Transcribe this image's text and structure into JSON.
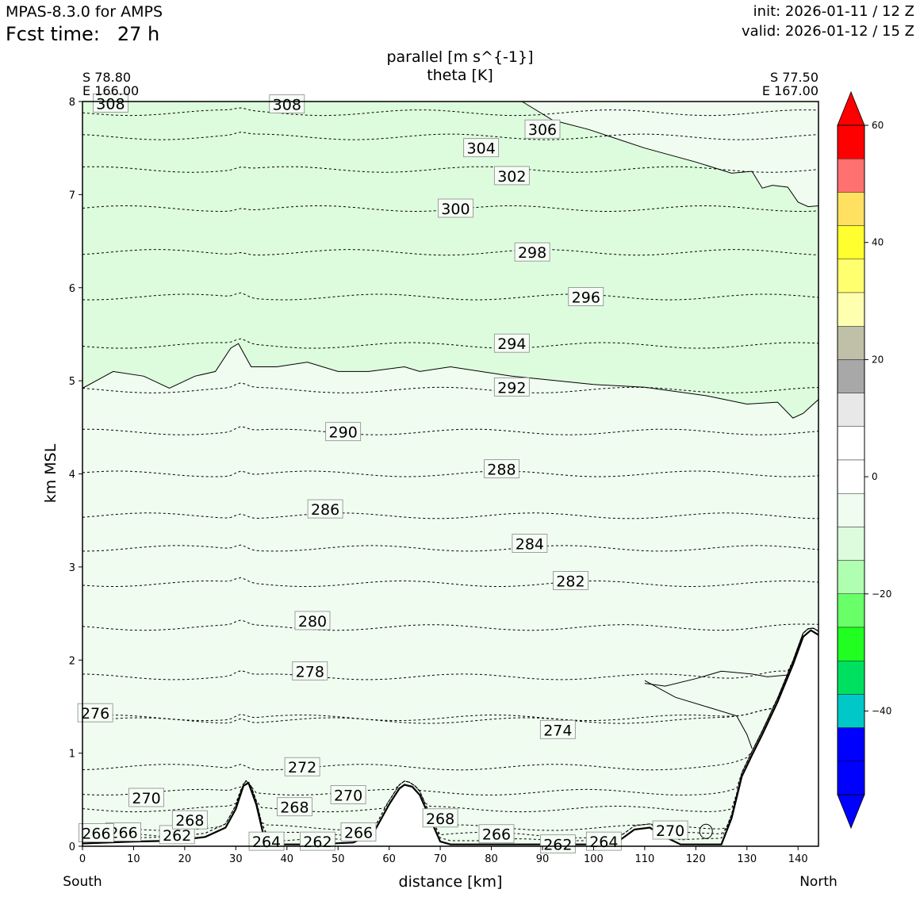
{
  "header": {
    "model": "MPAS-8.3.0 for AMPS",
    "fcst_label": "Fcst time:",
    "fcst_value": "27 h",
    "init": "init: 2026-01-11 / 12 Z",
    "valid": "valid: 2026-01-12 / 15 Z"
  },
  "endpoints": {
    "left_lat": "S 78.80",
    "left_lon": "E 166.00",
    "right_lat": "S 77.50",
    "right_lon": "E 167.00",
    "left_dir": "South",
    "right_dir": "North"
  },
  "chart_data": {
    "type": "contour-cross-section",
    "title": "parallel [m s^{-1}]",
    "subtitle": "theta [K]",
    "xlabel": "distance [km]",
    "ylabel": "km MSL",
    "xlim": [
      0,
      144
    ],
    "ylim": [
      0,
      8
    ],
    "xticks": [
      0,
      10,
      20,
      30,
      40,
      50,
      60,
      70,
      80,
      90,
      100,
      110,
      120,
      130,
      140
    ],
    "yticks": [
      0,
      1,
      2,
      3,
      4,
      5,
      6,
      7,
      8
    ],
    "filled_regions": [
      {
        "name": "0 to -5 m/s",
        "color": "#f0fcf0"
      },
      {
        "name": "-5 to -10 m/s",
        "color": "#ddfcdd"
      }
    ],
    "contour_minus5_boundary": [
      [
        0,
        4.92
      ],
      [
        6,
        5.1
      ],
      [
        12,
        5.05
      ],
      [
        17,
        4.92
      ],
      [
        22,
        5.05
      ],
      [
        26,
        5.1
      ],
      [
        29,
        5.35
      ],
      [
        30.5,
        5.4
      ],
      [
        33,
        5.15
      ],
      [
        38,
        5.15
      ],
      [
        44,
        5.2
      ],
      [
        50,
        5.1
      ],
      [
        56,
        5.1
      ],
      [
        63,
        5.15
      ],
      [
        66,
        5.1
      ],
      [
        72,
        5.15
      ],
      [
        84,
        5.05
      ],
      [
        100,
        4.96
      ],
      [
        110,
        4.93
      ],
      [
        122,
        4.84
      ],
      [
        130,
        4.75
      ],
      [
        136,
        4.77
      ],
      [
        139,
        4.6
      ],
      [
        141,
        4.65
      ],
      [
        144,
        4.8
      ]
    ],
    "contour_upper_zero": [
      [
        86,
        8
      ],
      [
        92,
        7.8
      ],
      [
        99,
        7.7
      ],
      [
        110,
        7.5
      ],
      [
        120,
        7.35
      ],
      [
        127,
        7.23
      ],
      [
        131,
        7.25
      ],
      [
        133,
        7.07
      ],
      [
        135,
        7.1
      ],
      [
        138,
        7.08
      ],
      [
        140,
        6.92
      ],
      [
        142,
        6.87
      ],
      [
        144,
        6.88
      ]
    ],
    "theta_contours": [
      {
        "level": 262,
        "y": 0.05,
        "label_x": 18.5,
        "label_y": 0.12
      },
      {
        "level": 264,
        "y": 0.12,
        "label_x": 36,
        "label_y": 0.05
      },
      {
        "level": 266,
        "y": 0.2,
        "label_x": 8,
        "label_y": 0.15
      },
      {
        "level": 268,
        "y": 0.4,
        "label_x": 21,
        "label_y": 0.28
      },
      {
        "level": 270,
        "y": 0.58,
        "label_x": 12.5,
        "label_y": 0.52
      },
      {
        "level": 272,
        "y": 0.85,
        "label_x": 43,
        "label_y": 0.85
      },
      {
        "level": 274,
        "y": 1.35,
        "label_x": 93,
        "label_y": 1.25
      },
      {
        "level": 276,
        "y": 1.38,
        "label_x": 2.5,
        "label_y": 1.43
      },
      {
        "level": 278,
        "y": 1.82,
        "label_x": 44.5,
        "label_y": 1.88
      },
      {
        "level": 280,
        "y": 2.35,
        "label_x": 45,
        "label_y": 2.42
      },
      {
        "level": 282,
        "y": 2.82,
        "label_x": 95.5,
        "label_y": 2.85
      },
      {
        "level": 284,
        "y": 3.2,
        "label_x": 87.5,
        "label_y": 3.25
      },
      {
        "level": 286,
        "y": 3.55,
        "label_x": 47.5,
        "label_y": 3.62
      },
      {
        "level": 288,
        "y": 4.0,
        "label_x": 82,
        "label_y": 4.05
      },
      {
        "level": 290,
        "y": 4.45,
        "label_x": 51,
        "label_y": 4.45
      },
      {
        "level": 292,
        "y": 4.9,
        "label_x": 84,
        "label_y": 4.93
      },
      {
        "level": 294,
        "y": 5.38,
        "label_x": 84,
        "label_y": 5.4
      },
      {
        "level": 296,
        "y": 5.9,
        "label_x": 98.5,
        "label_y": 5.9
      },
      {
        "level": 298,
        "y": 6.38,
        "label_x": 88,
        "label_y": 6.38
      },
      {
        "level": 300,
        "y": 6.85,
        "label_x": 73,
        "label_y": 6.85
      },
      {
        "level": 302,
        "y": 7.27,
        "label_x": 84,
        "label_y": 7.2
      },
      {
        "level": 304,
        "y": 7.62,
        "label_x": 78,
        "label_y": 7.5
      },
      {
        "level": 306,
        "y": 7.88,
        "label_x": 90,
        "label_y": 7.7
      },
      {
        "level": 308,
        "y": 8.1,
        "label_x": 40,
        "label_y": 7.97
      }
    ],
    "theta_label_clip": [
      {
        "level": "308",
        "x": 5.5,
        "y": 7.98
      },
      {
        "level": "266",
        "x": 2.7,
        "y": 0.14
      }
    ],
    "extra_theta_labels": [
      {
        "level": "268",
        "x": 41.5,
        "y": 0.42
      },
      {
        "level": "270",
        "x": 52,
        "y": 0.55
      },
      {
        "level": "268",
        "x": 70,
        "y": 0.3
      },
      {
        "level": "266",
        "x": 54,
        "y": 0.15
      },
      {
        "level": "262",
        "x": 46,
        "y": 0.05
      },
      {
        "level": "266",
        "x": 81,
        "y": 0.13
      },
      {
        "level": "262",
        "x": 93,
        "y": 0.02
      },
      {
        "level": "264",
        "x": 102,
        "y": 0.05
      },
      {
        "level": "270",
        "x": 115,
        "y": 0.17
      }
    ],
    "terrain": [
      [
        0,
        0.03
      ],
      [
        10,
        0.05
      ],
      [
        18,
        0.06
      ],
      [
        24,
        0.1
      ],
      [
        28,
        0.2
      ],
      [
        30,
        0.4
      ],
      [
        31.5,
        0.65
      ],
      [
        32.5,
        0.68
      ],
      [
        34,
        0.45
      ],
      [
        35.5,
        0.1
      ],
      [
        37,
        0.02
      ],
      [
        45,
        0.02
      ],
      [
        53,
        0.04
      ],
      [
        57,
        0.15
      ],
      [
        60,
        0.45
      ],
      [
        62,
        0.62
      ],
      [
        63,
        0.66
      ],
      [
        64.5,
        0.64
      ],
      [
        66,
        0.55
      ],
      [
        68,
        0.3
      ],
      [
        70,
        0.05
      ],
      [
        72,
        0.02
      ],
      [
        100,
        0.02
      ],
      [
        105,
        0.06
      ],
      [
        108,
        0.18
      ],
      [
        111,
        0.2
      ],
      [
        114,
        0.1
      ],
      [
        117,
        0.02
      ],
      [
        125,
        0.02
      ],
      [
        127,
        0.3
      ],
      [
        129,
        0.75
      ],
      [
        131,
        0.98
      ],
      [
        133,
        1.2
      ],
      [
        136,
        1.55
      ],
      [
        139,
        1.95
      ],
      [
        141,
        2.25
      ],
      [
        142.5,
        2.32
      ],
      [
        144,
        2.27
      ]
    ],
    "colorbar": {
      "ticks": [
        "60",
        "40",
        "20",
        "0",
        "−20",
        "−40"
      ],
      "colors": [
        "#ff0000",
        "#ff7070",
        "#ffe060",
        "#ffff30",
        "#ffff70",
        "#ffffb0",
        "#c0c0a8",
        "#a8a8a8",
        "#e8e8e8",
        "#ffffff",
        "#ffffff",
        "#f0fcf0",
        "#ddfcdd",
        "#b0ffb0",
        "#68ff68",
        "#20ff20",
        "#00e060",
        "#00c8c8",
        "#0000ff",
        "#0000ff"
      ],
      "top_triangle": "#ff0000",
      "bottom_triangle": "#0000ff"
    }
  }
}
